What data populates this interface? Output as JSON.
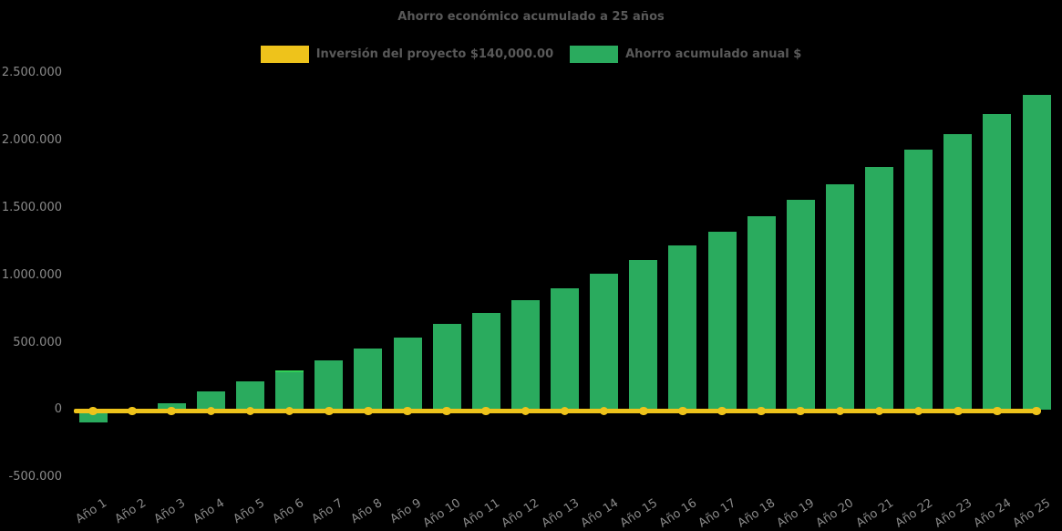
{
  "chart_data": {
    "type": "bar",
    "title": "Ahorro económico acumulado a 25 años",
    "xlabel": "",
    "ylabel": "",
    "background_color": "#000000",
    "title_color": "#595959",
    "tick_color": "#8a8a8a",
    "legend_position": "top",
    "legend": [
      {
        "label": "Inversión del proyecto $140,000.00",
        "color": "#eec31b",
        "type": "line"
      },
      {
        "label": "Ahorro acumulado anual $",
        "color": "#2aab5e",
        "type": "bar"
      }
    ],
    "categories": [
      "Año 1",
      "Año 2",
      "Año 3",
      "Año 4",
      "Año 5",
      "Año 6",
      "Año 7",
      "Año 8",
      "Año 9",
      "Año 10",
      "Año 11",
      "Año 12",
      "Año 13",
      "Año 14",
      "Año 15",
      "Año 16",
      "Año 17",
      "Año 18",
      "Año 19",
      "Año 20",
      "Año 21",
      "Año 22",
      "Año 23",
      "Año 24",
      "Año 25"
    ],
    "series": [
      {
        "name": "Inversión del proyecto $140,000.00",
        "type": "line",
        "color": "#eec31b",
        "stated_value_label": "$140,000.00",
        "plotted_value": 0,
        "marker": "circle"
      },
      {
        "name": "Ahorro acumulado anual $",
        "type": "bar",
        "color": "#2aab5e",
        "values": [
          -95000,
          5000,
          50000,
          135000,
          215000,
          295000,
          370000,
          455000,
          540000,
          640000,
          720000,
          815000,
          905000,
          1010000,
          1115000,
          1220000,
          1325000,
          1440000,
          1560000,
          1675000,
          1805000,
          1930000,
          2050000,
          2195000,
          2340000
        ]
      }
    ],
    "bar_highlight": {
      "category_index": 6,
      "color": "#31d056"
    },
    "y_axis": {
      "range": [
        -500000,
        2500000
      ],
      "gridlines": false,
      "ticks": [
        {
          "label": "2.500.000",
          "value": 2500000
        },
        {
          "label": "2.000.000",
          "value": 2000000
        },
        {
          "label": "1.500.000",
          "value": 1500000
        },
        {
          "label": "1.000.000",
          "value": 1000000
        },
        {
          "label": "500.000",
          "value": 500000
        },
        {
          "label": "0",
          "value": 0
        },
        {
          "label": "-500.000",
          "value": -500000
        }
      ]
    },
    "x_axis": {
      "label_rotation_deg": -33
    }
  }
}
